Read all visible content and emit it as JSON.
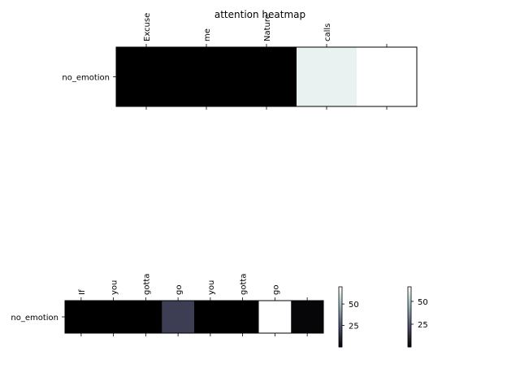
{
  "title": "attention heatmap",
  "chart_data": [
    {
      "type": "heatmap",
      "x_labels": [
        "Excuse",
        "me",
        "Nature",
        "calls",
        ""
      ],
      "y_labels": [
        "no_emotion"
      ],
      "values": [
        [
          0,
          0,
          0,
          62,
          66
        ]
      ],
      "colormap": "bone",
      "vmin": 0,
      "vmax": 66
    },
    {
      "type": "heatmap",
      "x_labels": [
        "If",
        "you",
        "gotta",
        "go",
        "you",
        "gotta",
        "go",
        ""
      ],
      "y_labels": [
        "no_emotion"
      ],
      "values": [
        [
          0,
          0,
          0,
          19,
          0,
          0,
          70,
          2
        ]
      ],
      "colormap": "bone",
      "vmin": 0,
      "vmax": 70
    }
  ],
  "colorbars": [
    {
      "ticks": [
        25,
        50
      ],
      "colormap": "bone",
      "vmin": 0,
      "vmax": 70
    },
    {
      "ticks": [
        25,
        50
      ],
      "colormap": "bone",
      "vmin": 0,
      "vmax": 66
    }
  ]
}
